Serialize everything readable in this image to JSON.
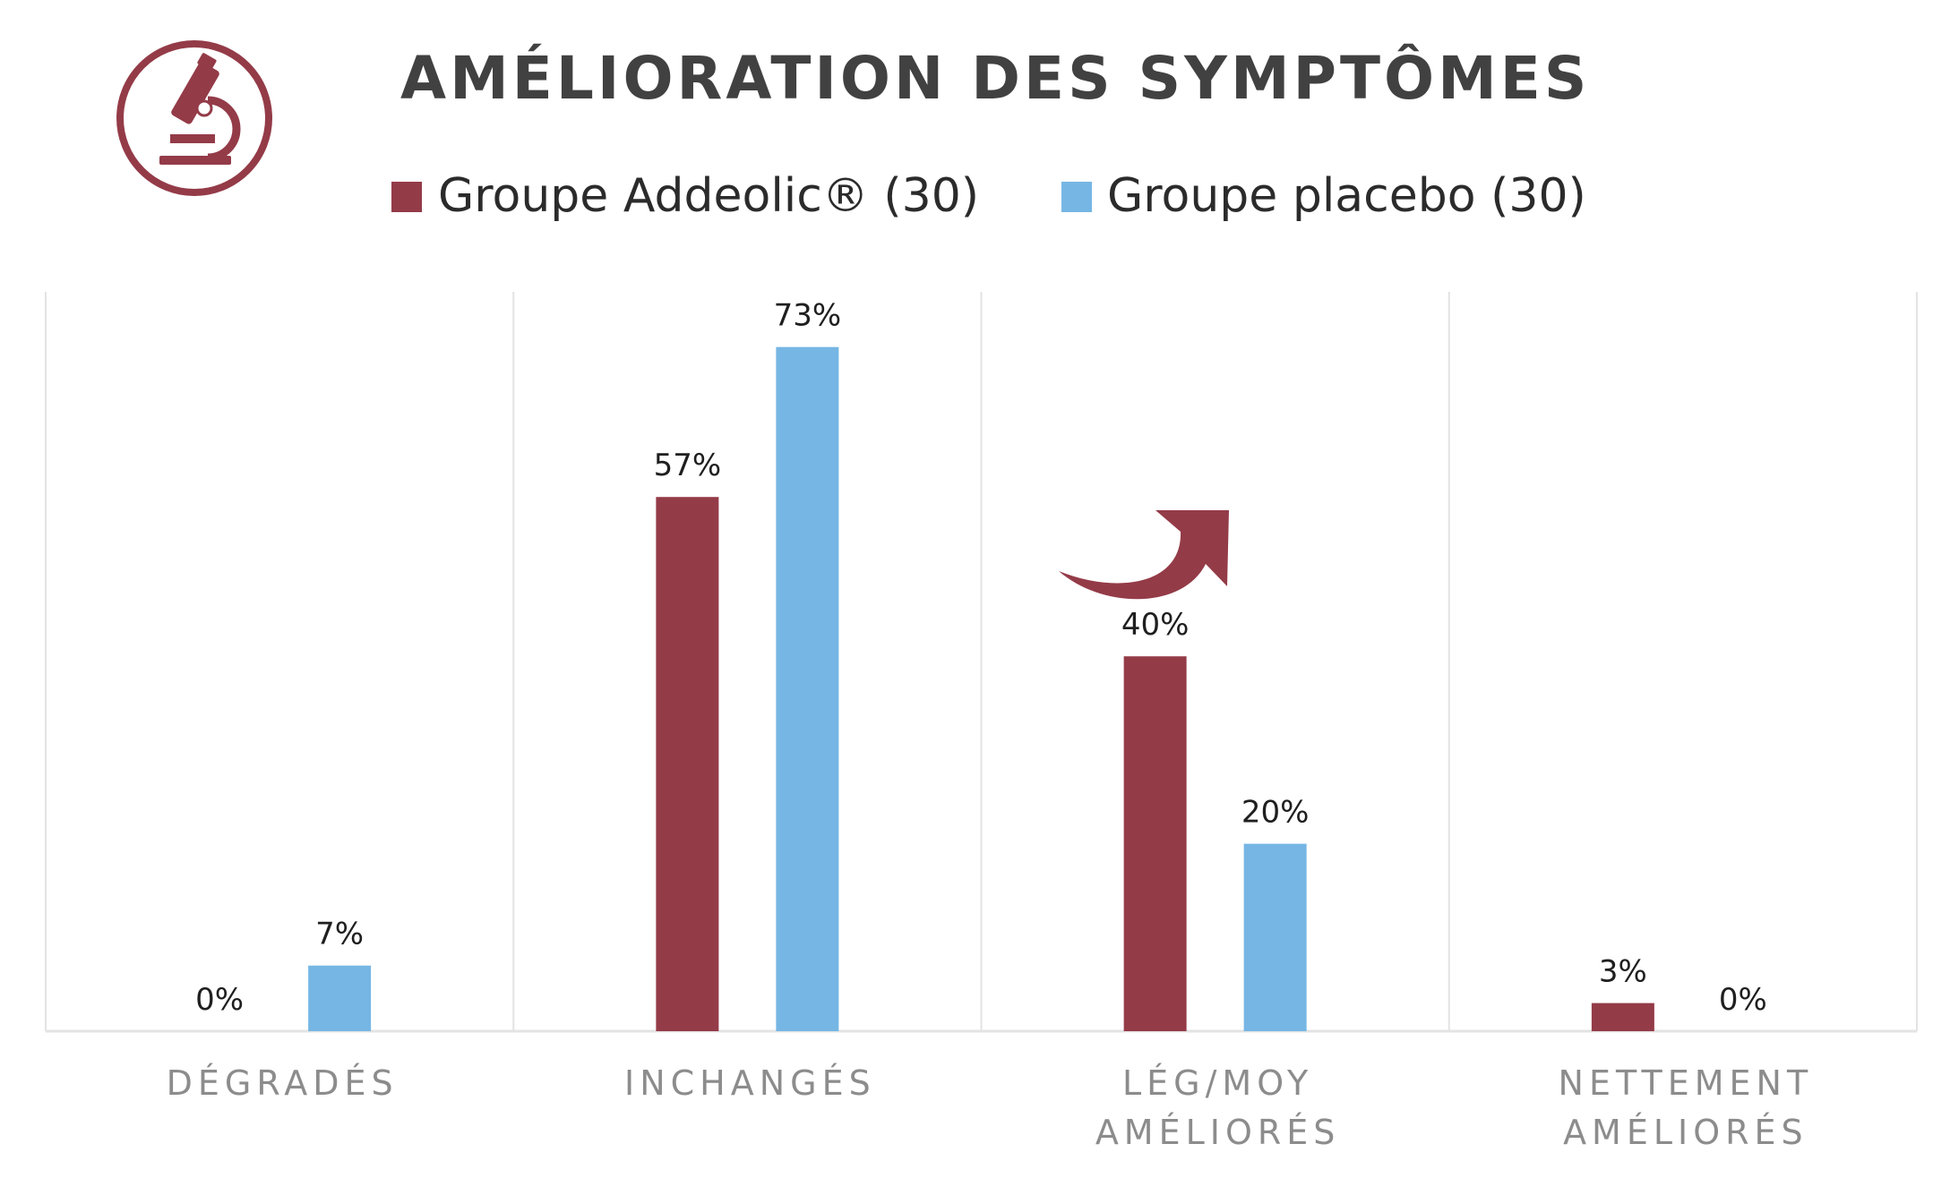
{
  "chart_data": {
    "type": "bar",
    "title": "AMÉLIORATION DES SYMPTÔMES",
    "categories": [
      [
        "DÉGRADÉS"
      ],
      [
        "INCHANGÉS"
      ],
      [
        "LÉG/MOY",
        "AMÉLIORÉS"
      ],
      [
        "NETTEMENT",
        "AMÉLIORÉS"
      ]
    ],
    "series": [
      {
        "name": "Groupe Addeolic® (30)",
        "color": "#943b48",
        "values": [
          0,
          57,
          40,
          3
        ],
        "labels": [
          "0%",
          "57%",
          "40%",
          "3%"
        ]
      },
      {
        "name": "Groupe placebo (30)",
        "color": "#76b6e4",
        "values": [
          7,
          73,
          20,
          0
        ],
        "labels": [
          "7%",
          "73%",
          "20%",
          "0%"
        ]
      }
    ],
    "ylim": [
      0,
      80
    ],
    "grid": "vertical-separators",
    "legend_position": "top",
    "icon": "microscope-icon",
    "annotation": "curved-arrow-up-right",
    "colors": {
      "accent": "#943b48",
      "title": "#414141",
      "category_text": "#8c8c8c",
      "grid": "#e3e3e3"
    }
  }
}
